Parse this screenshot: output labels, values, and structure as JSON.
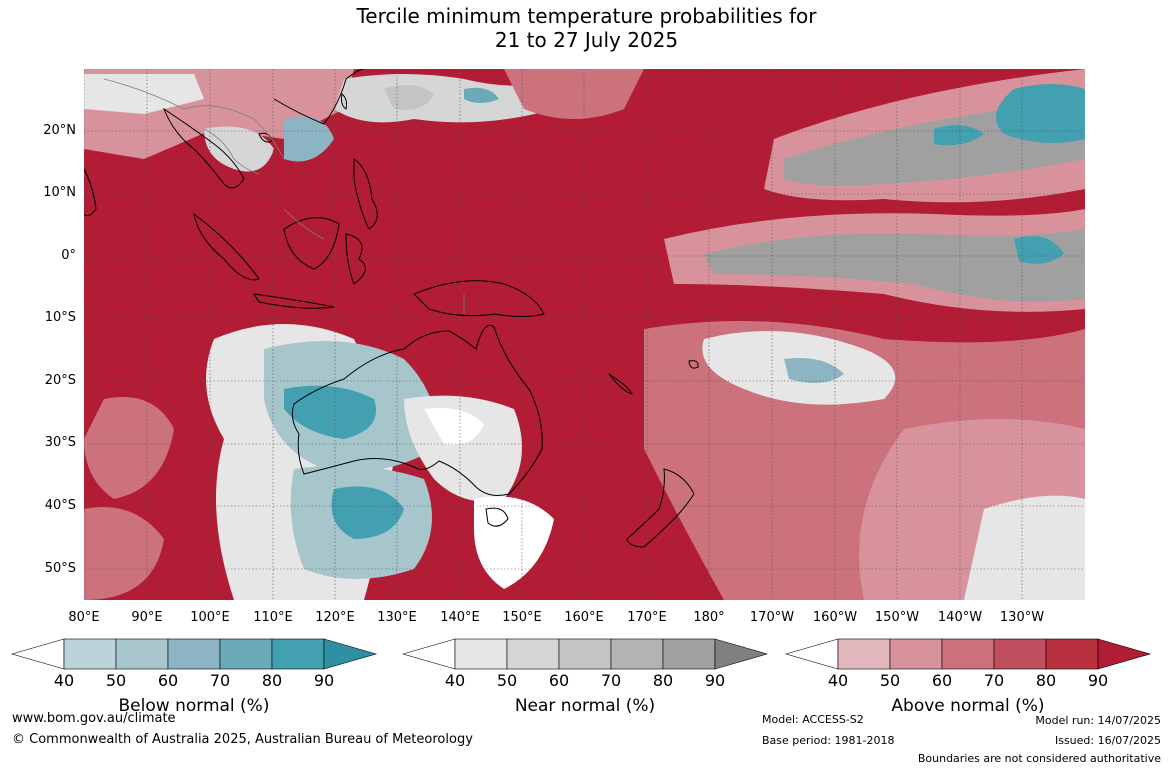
{
  "title_line1": "Tercile minimum temperature probabilities for",
  "title_line2": "21 to 27 July 2025",
  "lat_labels": [
    "20°N",
    "10°N",
    "0°",
    "10°S",
    "20°S",
    "30°S",
    "40°S",
    "50°S"
  ],
  "lon_labels": [
    "80°E",
    "90°E",
    "100°E",
    "110°E",
    "120°E",
    "130°E",
    "140°E",
    "150°E",
    "160°E",
    "170°E",
    "180°",
    "170°W",
    "160°W",
    "150°W",
    "140°W",
    "130°W"
  ],
  "colorbars": [
    {
      "label": "Below normal (%)",
      "ticks": [
        "40",
        "50",
        "60",
        "70",
        "80",
        "90"
      ],
      "colors": [
        "#ffffff",
        "#bdd3da",
        "#a6c6cc",
        "#8cb4c2",
        "#6aa9b6",
        "#43a0b0",
        "#2f8fa3"
      ]
    },
    {
      "label": "Near normal (%)",
      "ticks": [
        "40",
        "50",
        "60",
        "70",
        "80",
        "90"
      ],
      "colors": [
        "#ffffff",
        "#e6e6e6",
        "#d6d6d6",
        "#c4c4c4",
        "#b3b3b3",
        "#a0a0a0",
        "#808080"
      ]
    },
    {
      "label": "Above normal (%)",
      "ticks": [
        "40",
        "50",
        "60",
        "70",
        "80",
        "90"
      ],
      "colors": [
        "#ffffff",
        "#e2b6bd",
        "#d8929c",
        "#cb727d",
        "#bf4f5f",
        "#b9303f",
        "#b21c34"
      ]
    }
  ],
  "footer": {
    "website": "www.bom.gov.au/climate",
    "copyright": "© Commonwealth of Australia 2025, Australian Bureau of Meteorology",
    "model": "Model: ACCESS-S2",
    "base_period": "Base period: 1981-2018",
    "model_run": "Model run: 14/07/2025",
    "issued": "Issued: 16/07/2025",
    "disclaimer": "Boundaries are not considered authoritative"
  }
}
